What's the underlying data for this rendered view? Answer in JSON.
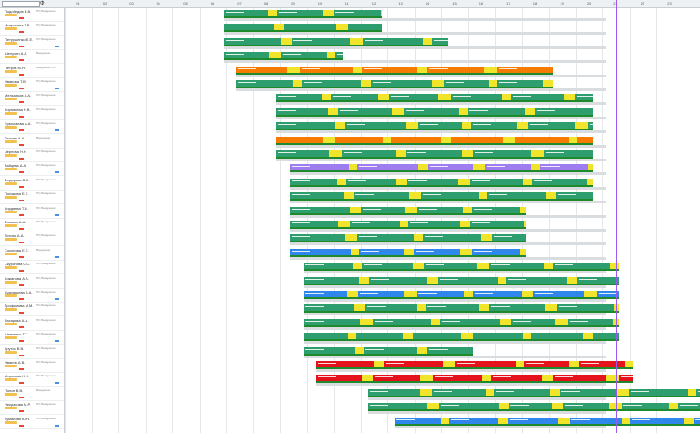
{
  "header": {
    "filter_label": "Ф",
    "search_placeholder": "",
    "filter_icon": "filter-icon"
  },
  "columns": [
    "01",
    "02",
    "03",
    "04",
    "05",
    "06",
    "07",
    "08",
    "09",
    "10",
    "11",
    "12",
    "13",
    "14",
    "15",
    "16",
    "17",
    "18",
    "19",
    "20",
    "21",
    "22",
    "23"
  ],
  "colors": {
    "work": "#2f9e6e",
    "rest": "#f0e52a",
    "orange": "#f57c00",
    "blue": "#2f86eb",
    "violet": "#9e7df0",
    "red": "#e5131b",
    "pink": "#ec6aa8",
    "now": "#9b59f0"
  },
  "rows": [
    {
      "name": "Подобедов В.В.",
      "status": "ПО Внедрение"
    },
    {
      "name": "Митрохина Т.В.",
      "status": "ПО Внедрение"
    },
    {
      "name": "Петрушенко Е.Е.",
      "status": "ПО Внедрение"
    },
    {
      "name": "Шелухин А.А.",
      "status": "Внедрение"
    },
    {
      "name": "Петров М.Н.",
      "status": "Внедрение ПО"
    },
    {
      "name": "Иванова Т.В.",
      "status": "ПО Внедрение"
    },
    {
      "name": "Мельников А.А.",
      "status": "ПО Внедрение"
    },
    {
      "name": "Кирпичева Н.В.",
      "status": "ПО Внедрение"
    },
    {
      "name": "Ермолаева А.А.",
      "status": "ПО Внедрение"
    },
    {
      "name": "Лыкова А.А.",
      "status": "Внедрение"
    },
    {
      "name": "Чернова Н.Н.",
      "status": "ПО Внедрение"
    },
    {
      "name": "Зайцева А.А.",
      "status": "ПО Внедрение"
    },
    {
      "name": "Федорова В.В.",
      "status": "ПО Внедрение"
    },
    {
      "name": "Полякова Е.Е.",
      "status": "ПО Внедрение"
    },
    {
      "name": "Кирдяева Т.В.",
      "status": "ПО Внедрение"
    },
    {
      "name": "Фомина А.А.",
      "status": "ПО Внедрение"
    },
    {
      "name": "Титова А.А.",
      "status": "ПО Внедрение"
    },
    {
      "name": "Соколова Е.Е.",
      "status": "Внедрение"
    },
    {
      "name": "Скуратова С.С.",
      "status": "ПО Внедрение"
    },
    {
      "name": "Кожанова А.А.",
      "status": "ПО Внедрение"
    },
    {
      "name": "Кудрявцева А.А.",
      "status": "ПО Внедрение"
    },
    {
      "name": "Трофимова М.М.",
      "status": "ПО Внедрение"
    },
    {
      "name": "Захарова А.А.",
      "status": "ПО Внедрение"
    },
    {
      "name": "Шевченко Т.Т.",
      "status": "ПО Внедрение"
    },
    {
      "name": "Крутов В.В.",
      "status": "ПО Внедрение"
    },
    {
      "name": "Иванов А.В.",
      "status": "ПО Внедрение"
    },
    {
      "name": "Морозова Н.Н.",
      "status": "ПО Внедрение"
    },
    {
      "name": "Попов В.В.",
      "status": "Внедрение"
    },
    {
      "name": "Некрасова М.Р.",
      "status": "ПО Внедрение"
    },
    {
      "name": "Туманова Ю.Н.",
      "status": "ПО Внедрение"
    }
  ]
}
